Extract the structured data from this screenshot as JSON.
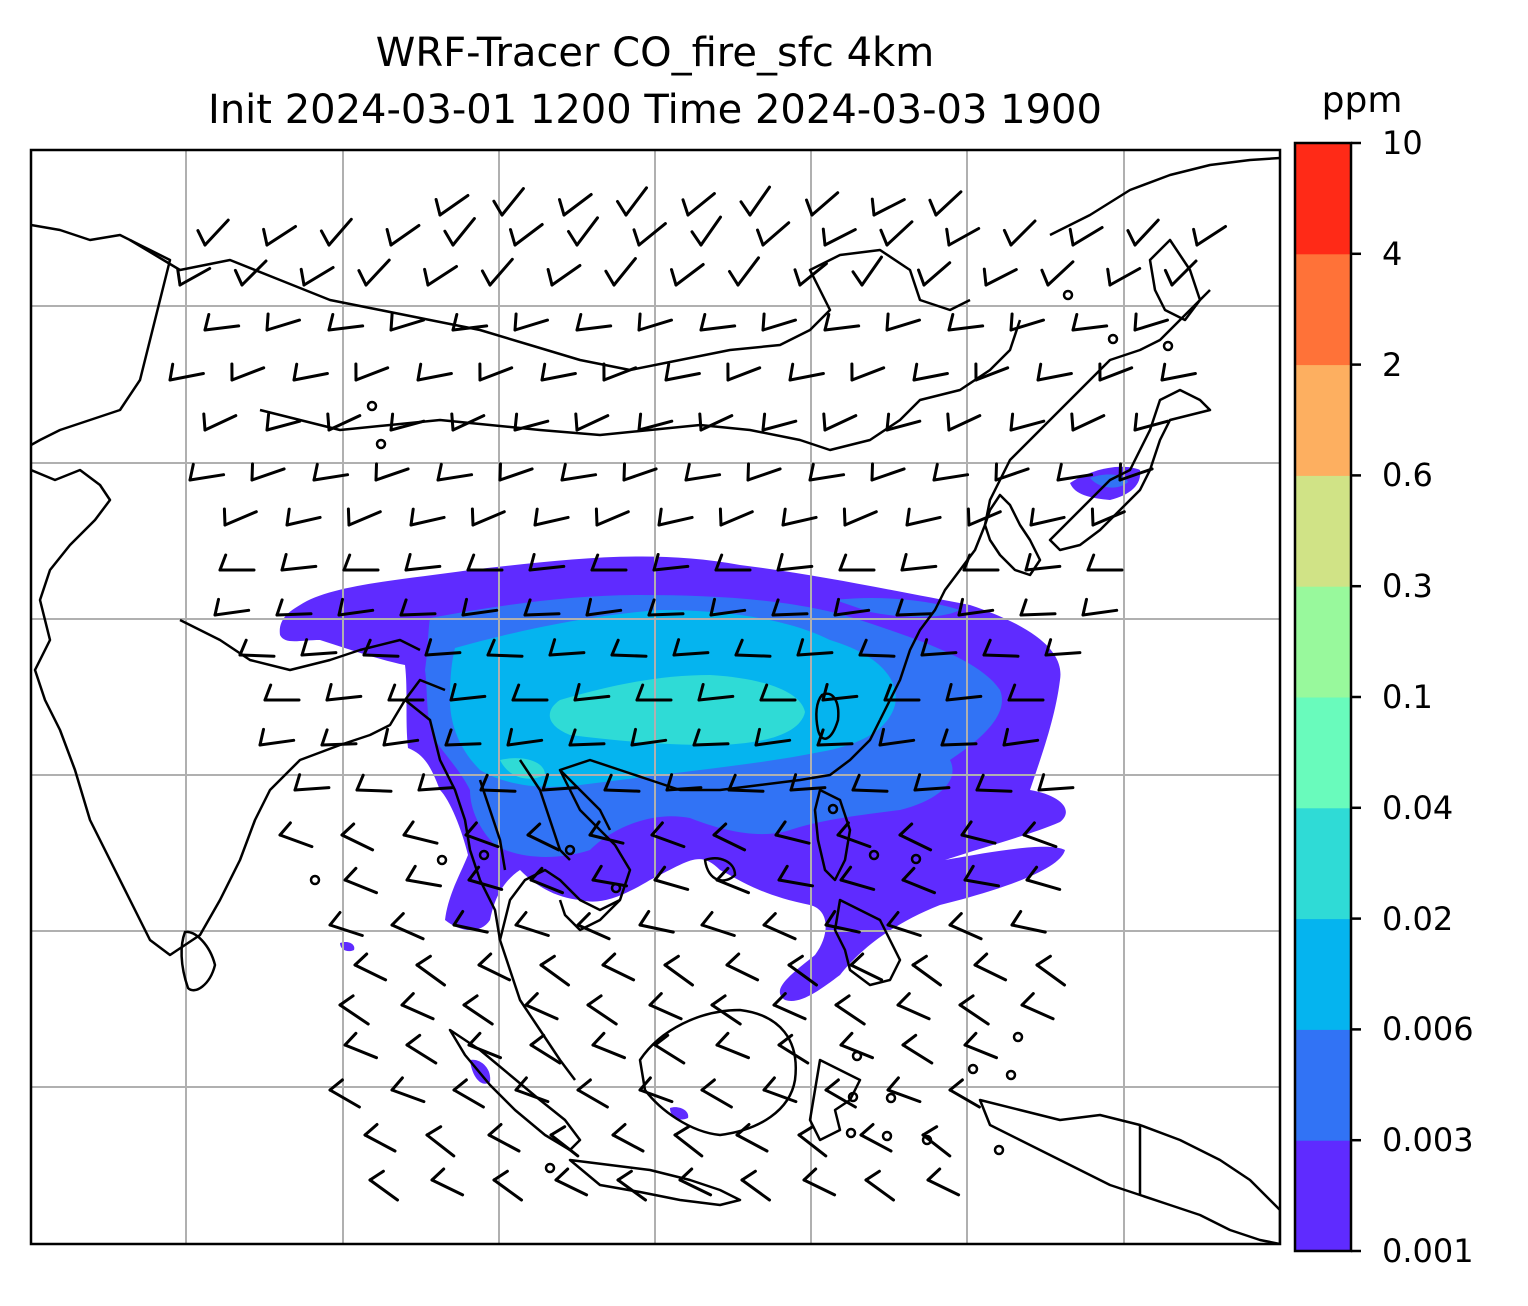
{
  "title": {
    "line1": "WRF-Tracer CO_fire_sfc 4km",
    "line2": "Init 2024-03-01 1200 Time 2024-03-03 1900"
  },
  "colorbar": {
    "unit": "ppm",
    "levels": [
      "0.001",
      "0.003",
      "0.006",
      "0.02",
      "0.04",
      "0.1",
      "0.3",
      "0.6",
      "2",
      "4",
      "10"
    ],
    "colors": [
      "#5f2bff",
      "#3173f5",
      "#05b4ef",
      "#2fdbd6",
      "#69fbbc",
      "#98f99c",
      "#d0e386",
      "#fdaf60",
      "#ff7238",
      "#ff2a17"
    ]
  },
  "map": {
    "plume_colors": [
      "#5f2bff",
      "#3173f5",
      "#05b4ef",
      "#2fdbd6"
    ],
    "gridline_color": "#b0b0b0",
    "coastline_color": "#000000",
    "barb_color": "#000000"
  }
}
